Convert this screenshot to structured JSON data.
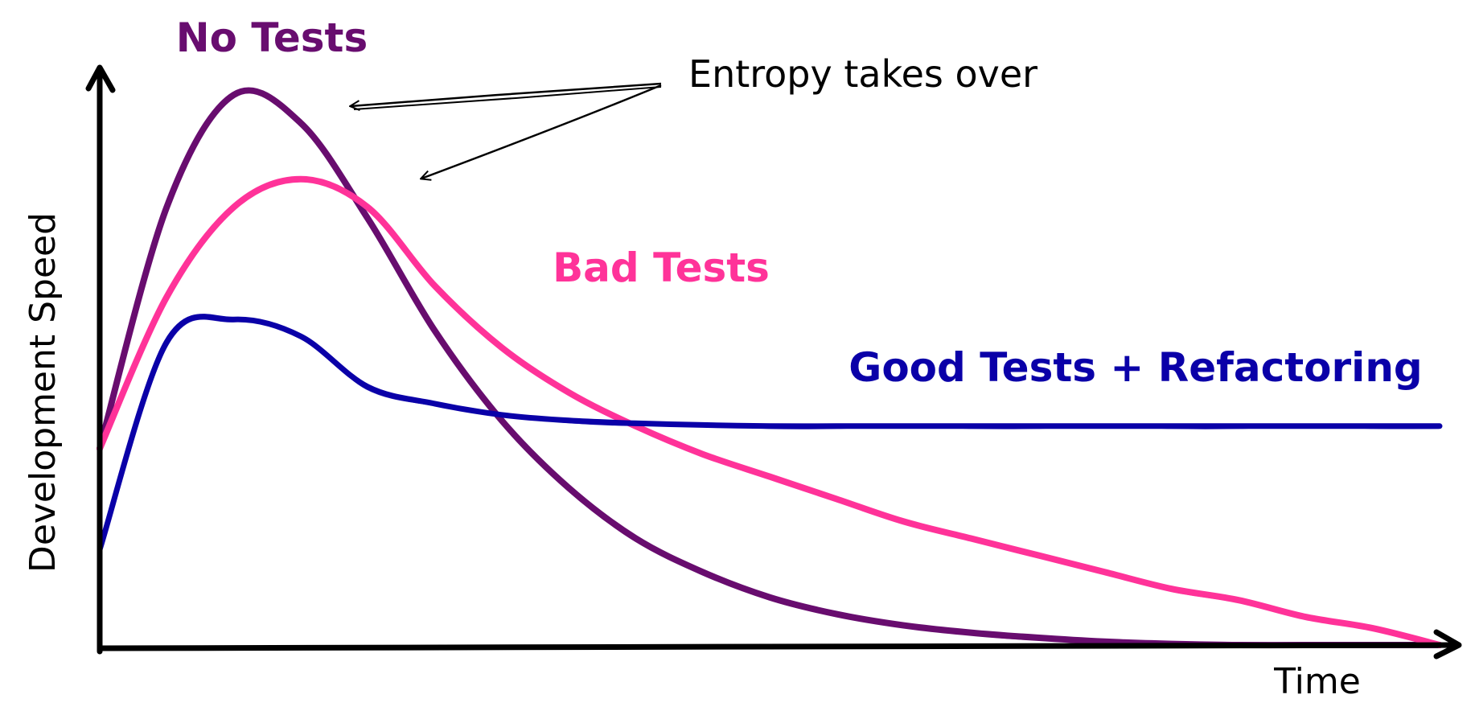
{
  "chart_data": {
    "type": "line",
    "title": "",
    "xlabel": "Time",
    "ylabel": "Development Speed",
    "grid": false,
    "legend": "inline labels",
    "xlim": [
      0,
      1
    ],
    "ylim": [
      0,
      1
    ],
    "x": [
      0,
      0.05,
      0.1,
      0.15,
      0.2,
      0.25,
      0.3,
      0.35,
      0.4,
      0.45,
      0.5,
      0.55,
      0.6,
      0.65,
      0.7,
      0.75,
      0.8,
      0.85,
      0.9,
      0.95,
      1.0
    ],
    "series": [
      {
        "name": "No Tests",
        "color": "#680D6F",
        "values": [
          0.35,
          0.78,
          0.98,
          0.93,
          0.76,
          0.56,
          0.4,
          0.28,
          0.19,
          0.13,
          0.085,
          0.055,
          0.035,
          0.022,
          0.013,
          0.006,
          0.002,
          0.0,
          0.0,
          0.0,
          0.0
        ]
      },
      {
        "name": "Bad Tests",
        "color": "#FF3399",
        "values": [
          0.35,
          0.62,
          0.78,
          0.83,
          0.78,
          0.64,
          0.53,
          0.45,
          0.39,
          0.34,
          0.3,
          0.26,
          0.22,
          0.19,
          0.16,
          0.13,
          0.1,
          0.08,
          0.05,
          0.03,
          0.0
        ]
      },
      {
        "name": "Good Tests + Refactoring",
        "color": "#0A00A8",
        "values": [
          0.17,
          0.54,
          0.58,
          0.55,
          0.46,
          0.43,
          0.41,
          0.4,
          0.395,
          0.392,
          0.39,
          0.39,
          0.39,
          0.39,
          0.39,
          0.39,
          0.39,
          0.39,
          0.39,
          0.39,
          0.39
        ]
      }
    ],
    "annotations": [
      {
        "text": "Entropy takes over",
        "points_to": [
          "No Tests",
          "Bad Tests"
        ]
      }
    ]
  }
}
